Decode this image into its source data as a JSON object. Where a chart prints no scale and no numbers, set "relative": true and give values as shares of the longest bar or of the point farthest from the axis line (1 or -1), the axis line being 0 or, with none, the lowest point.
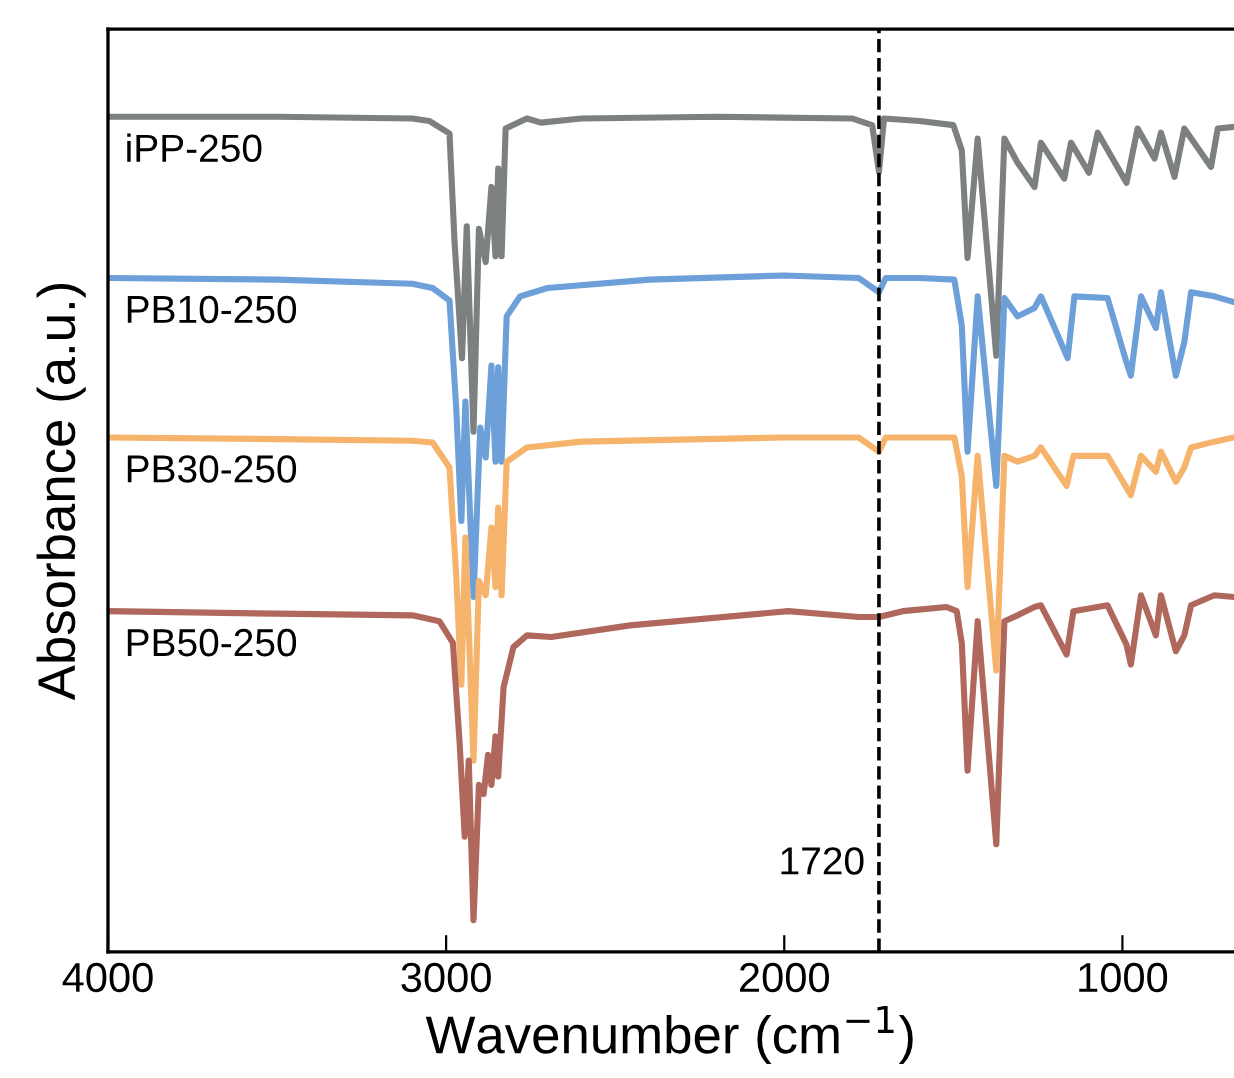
{
  "chart_data": {
    "type": "line",
    "relative": true,
    "xlabel": "Wavenumber (cm$^{−1}$)",
    "ylabel": "Absorbance (a.u.)",
    "xlim": [
      4000,
      670
    ],
    "xticks": [
      4000,
      3000,
      2000,
      1000
    ],
    "grid": false,
    "legend": false,
    "marker": "none",
    "line_style": "solid",
    "tick_labels": "x",
    "ref_lines": [
      {
        "axis": "x",
        "value": 1720,
        "label": "1720",
        "color": "#000000",
        "line_style": "dashed"
      }
    ],
    "series": [
      {
        "name": "iPP-250",
        "color": "#7d8081",
        "x": [
          4000,
          3500,
          3100,
          3050,
          2990,
          2975,
          2953,
          2939,
          2919,
          2903,
          2883,
          2866,
          2854,
          2846,
          2836,
          2824,
          2761,
          2720,
          2600,
          2200,
          1800,
          1740,
          1720,
          1705,
          1600,
          1500,
          1475,
          1458,
          1428,
          1373,
          1349,
          1310,
          1260,
          1241,
          1172,
          1152,
          1099,
          1073,
          988,
          955,
          905,
          886,
          846,
          817,
          738,
          718,
          670
        ],
        "values": [
          1.0,
          1.0,
          0.998,
          0.995,
          0.98,
          0.85,
          0.711,
          0.869,
          0.623,
          0.866,
          0.826,
          0.916,
          0.833,
          0.938,
          0.833,
          0.986,
          0.998,
          0.993,
          0.998,
          1.0,
          0.998,
          0.99,
          0.934,
          0.998,
          0.995,
          0.99,
          0.96,
          0.831,
          0.974,
          0.714,
          0.974,
          0.945,
          0.916,
          0.969,
          0.926,
          0.969,
          0.933,
          0.981,
          0.921,
          0.986,
          0.95,
          0.981,
          0.928,
          0.986,
          0.94,
          0.986,
          0.988
        ]
      },
      {
        "name": "PB10-250",
        "color": "#6d9fd9",
        "x": [
          4000,
          3500,
          3100,
          3040,
          2990,
          2970,
          2955,
          2943,
          2919,
          2899,
          2883,
          2866,
          2854,
          2846,
          2836,
          2821,
          2781,
          2700,
          2400,
          2000,
          1780,
          1720,
          1700,
          1600,
          1497,
          1475,
          1458,
          1428,
          1373,
          1349,
          1310,
          1260,
          1241,
          1162,
          1142,
          1044,
          988,
          975,
          945,
          901,
          886,
          842,
          817,
          797,
          728,
          670
        ],
        "values": [
          0.807,
          0.805,
          0.8,
          0.795,
          0.78,
          0.65,
          0.516,
          0.659,
          0.425,
          0.628,
          0.592,
          0.702,
          0.587,
          0.7,
          0.587,
          0.761,
          0.785,
          0.795,
          0.805,
          0.81,
          0.807,
          0.79,
          0.807,
          0.807,
          0.805,
          0.75,
          0.599,
          0.785,
          0.558,
          0.783,
          0.761,
          0.771,
          0.785,
          0.711,
          0.785,
          0.783,
          0.706,
          0.69,
          0.785,
          0.747,
          0.79,
          0.69,
          0.73,
          0.79,
          0.785,
          0.778
        ]
      },
      {
        "name": "PB30-250",
        "color": "#f6b36c",
        "x": [
          4000,
          3500,
          3100,
          3040,
          2990,
          2970,
          2955,
          2943,
          2919,
          2903,
          2883,
          2866,
          2854,
          2846,
          2836,
          2821,
          2761,
          2600,
          2000,
          1780,
          1720,
          1700,
          1600,
          1497,
          1475,
          1458,
          1428,
          1373,
          1349,
          1310,
          1260,
          1241,
          1165,
          1145,
          1044,
          988,
          975,
          945,
          901,
          886,
          842,
          817,
          797,
          728,
          670
        ],
        "values": [
          0.616,
          0.614,
          0.612,
          0.61,
          0.58,
          0.45,
          0.32,
          0.496,
          0.229,
          0.444,
          0.427,
          0.508,
          0.437,
          0.532,
          0.427,
          0.587,
          0.604,
          0.611,
          0.616,
          0.616,
          0.599,
          0.616,
          0.616,
          0.616,
          0.57,
          0.437,
          0.594,
          0.337,
          0.594,
          0.587,
          0.594,
          0.604,
          0.558,
          0.594,
          0.594,
          0.556,
          0.547,
          0.594,
          0.575,
          0.599,
          0.563,
          0.58,
          0.604,
          0.611,
          0.616
        ]
      },
      {
        "name": "PB50-250",
        "color": "#b0685c",
        "x": [
          4000,
          3500,
          3100,
          3020,
          2980,
          2960,
          2945,
          2933,
          2919,
          2903,
          2889,
          2876,
          2866,
          2854,
          2846,
          2830,
          2801,
          2761,
          2689,
          2456,
          1988,
          1780,
          1720,
          1650,
          1520,
          1490,
          1475,
          1458,
          1428,
          1373,
          1349,
          1310,
          1260,
          1241,
          1165,
          1145,
          1044,
          988,
          975,
          945,
          901,
          886,
          842,
          817,
          797,
          728,
          670
        ],
        "values": [
          0.408,
          0.405,
          0.403,
          0.396,
          0.37,
          0.25,
          0.138,
          0.229,
          0.038,
          0.2,
          0.189,
          0.236,
          0.2,
          0.258,
          0.21,
          0.317,
          0.365,
          0.379,
          0.377,
          0.391,
          0.408,
          0.401,
          0.401,
          0.408,
          0.413,
          0.408,
          0.37,
          0.217,
          0.396,
          0.129,
          0.396,
          0.403,
          0.413,
          0.415,
          0.356,
          0.408,
          0.415,
          0.368,
          0.344,
          0.427,
          0.379,
          0.427,
          0.36,
          0.379,
          0.415,
          0.427,
          0.425
        ]
      }
    ]
  }
}
